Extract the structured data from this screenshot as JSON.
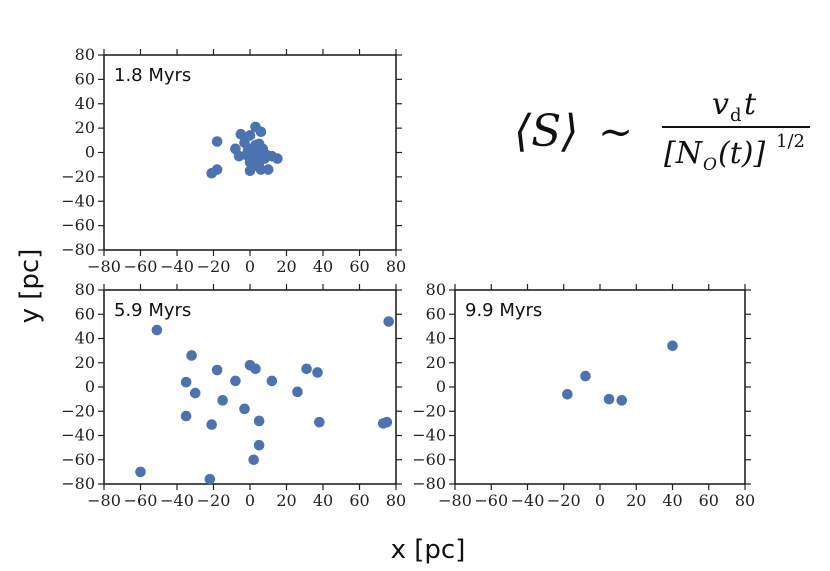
{
  "chart_data": [
    {
      "type": "scatter",
      "panel": "top-left",
      "label": "1.8 Myrs",
      "xlim": [
        -80,
        80
      ],
      "ylim": [
        -80,
        80
      ],
      "xticks": [
        -80,
        -60,
        -40,
        -20,
        0,
        20,
        40,
        60,
        80
      ],
      "yticks": [
        -80,
        -60,
        -40,
        -20,
        0,
        20,
        40,
        60,
        80
      ],
      "points": [
        [
          -21,
          -17
        ],
        [
          -18,
          -14
        ],
        [
          -18,
          9
        ],
        [
          -8,
          3
        ],
        [
          -6,
          -3
        ],
        [
          -5,
          15
        ],
        [
          -3,
          8
        ],
        [
          -2,
          -2
        ],
        [
          -1,
          2
        ],
        [
          0,
          14
        ],
        [
          0,
          -8
        ],
        [
          0,
          -15
        ],
        [
          1,
          3
        ],
        [
          1,
          -5
        ],
        [
          2,
          -11
        ],
        [
          3,
          0
        ],
        [
          3,
          6
        ],
        [
          3,
          21
        ],
        [
          4,
          -3
        ],
        [
          5,
          -8
        ],
        [
          5,
          7
        ],
        [
          6,
          -14
        ],
        [
          6,
          17
        ],
        [
          7,
          3
        ],
        [
          8,
          -5
        ],
        [
          9,
          -2
        ],
        [
          10,
          -14
        ],
        [
          12,
          -3
        ],
        [
          15,
          -5
        ]
      ]
    },
    {
      "type": "scatter",
      "panel": "bottom-left",
      "label": "5.9 Myrs",
      "xlim": [
        -80,
        80
      ],
      "ylim": [
        -80,
        80
      ],
      "xticks": [
        -80,
        -60,
        -40,
        -20,
        0,
        20,
        40,
        60,
        80
      ],
      "yticks": [
        -80,
        -60,
        -40,
        -20,
        0,
        20,
        40,
        60,
        80
      ],
      "points": [
        [
          -60,
          -70
        ],
        [
          -51,
          47
        ],
        [
          -35,
          4
        ],
        [
          -35,
          -24
        ],
        [
          -32,
          26
        ],
        [
          -30,
          -5
        ],
        [
          -21,
          -31
        ],
        [
          -22,
          -76
        ],
        [
          -18,
          14
        ],
        [
          -15,
          -11
        ],
        [
          -8,
          5
        ],
        [
          -3,
          -18
        ],
        [
          0,
          18
        ],
        [
          2,
          -60
        ],
        [
          3,
          15
        ],
        [
          5,
          -28
        ],
        [
          5,
          -48
        ],
        [
          12,
          5
        ],
        [
          26,
          -4
        ],
        [
          31,
          15
        ],
        [
          37,
          12
        ],
        [
          38,
          -29
        ],
        [
          73,
          -30
        ],
        [
          75,
          -29
        ],
        [
          76,
          54
        ]
      ]
    },
    {
      "type": "scatter",
      "panel": "bottom-right",
      "label": "9.9 Myrs",
      "xlim": [
        -80,
        80
      ],
      "ylim": [
        -80,
        80
      ],
      "xticks": [
        -80,
        -60,
        -40,
        -20,
        0,
        20,
        40,
        60,
        80
      ],
      "yticks": [
        -80,
        -60,
        -40,
        -20,
        0,
        20,
        40,
        60,
        80
      ],
      "points": [
        [
          -18,
          -6
        ],
        [
          -8,
          9
        ],
        [
          5,
          -10
        ],
        [
          12,
          -11
        ],
        [
          40,
          34
        ]
      ]
    }
  ],
  "axes": {
    "xlabel": "x [pc]",
    "ylabel": "y [pc]"
  },
  "formula": {
    "lhs": "⟨S⟩",
    "relation": "∼",
    "numerator_v": "v",
    "numerator_sub": "d",
    "numerator_t": "t",
    "denominator": "[N",
    "denominator_sub": "O",
    "denominator_rest": "(t)]",
    "denominator_exp": "1/2"
  },
  "colors": {
    "marker": "#4c72b0",
    "frame": "#222222"
  }
}
